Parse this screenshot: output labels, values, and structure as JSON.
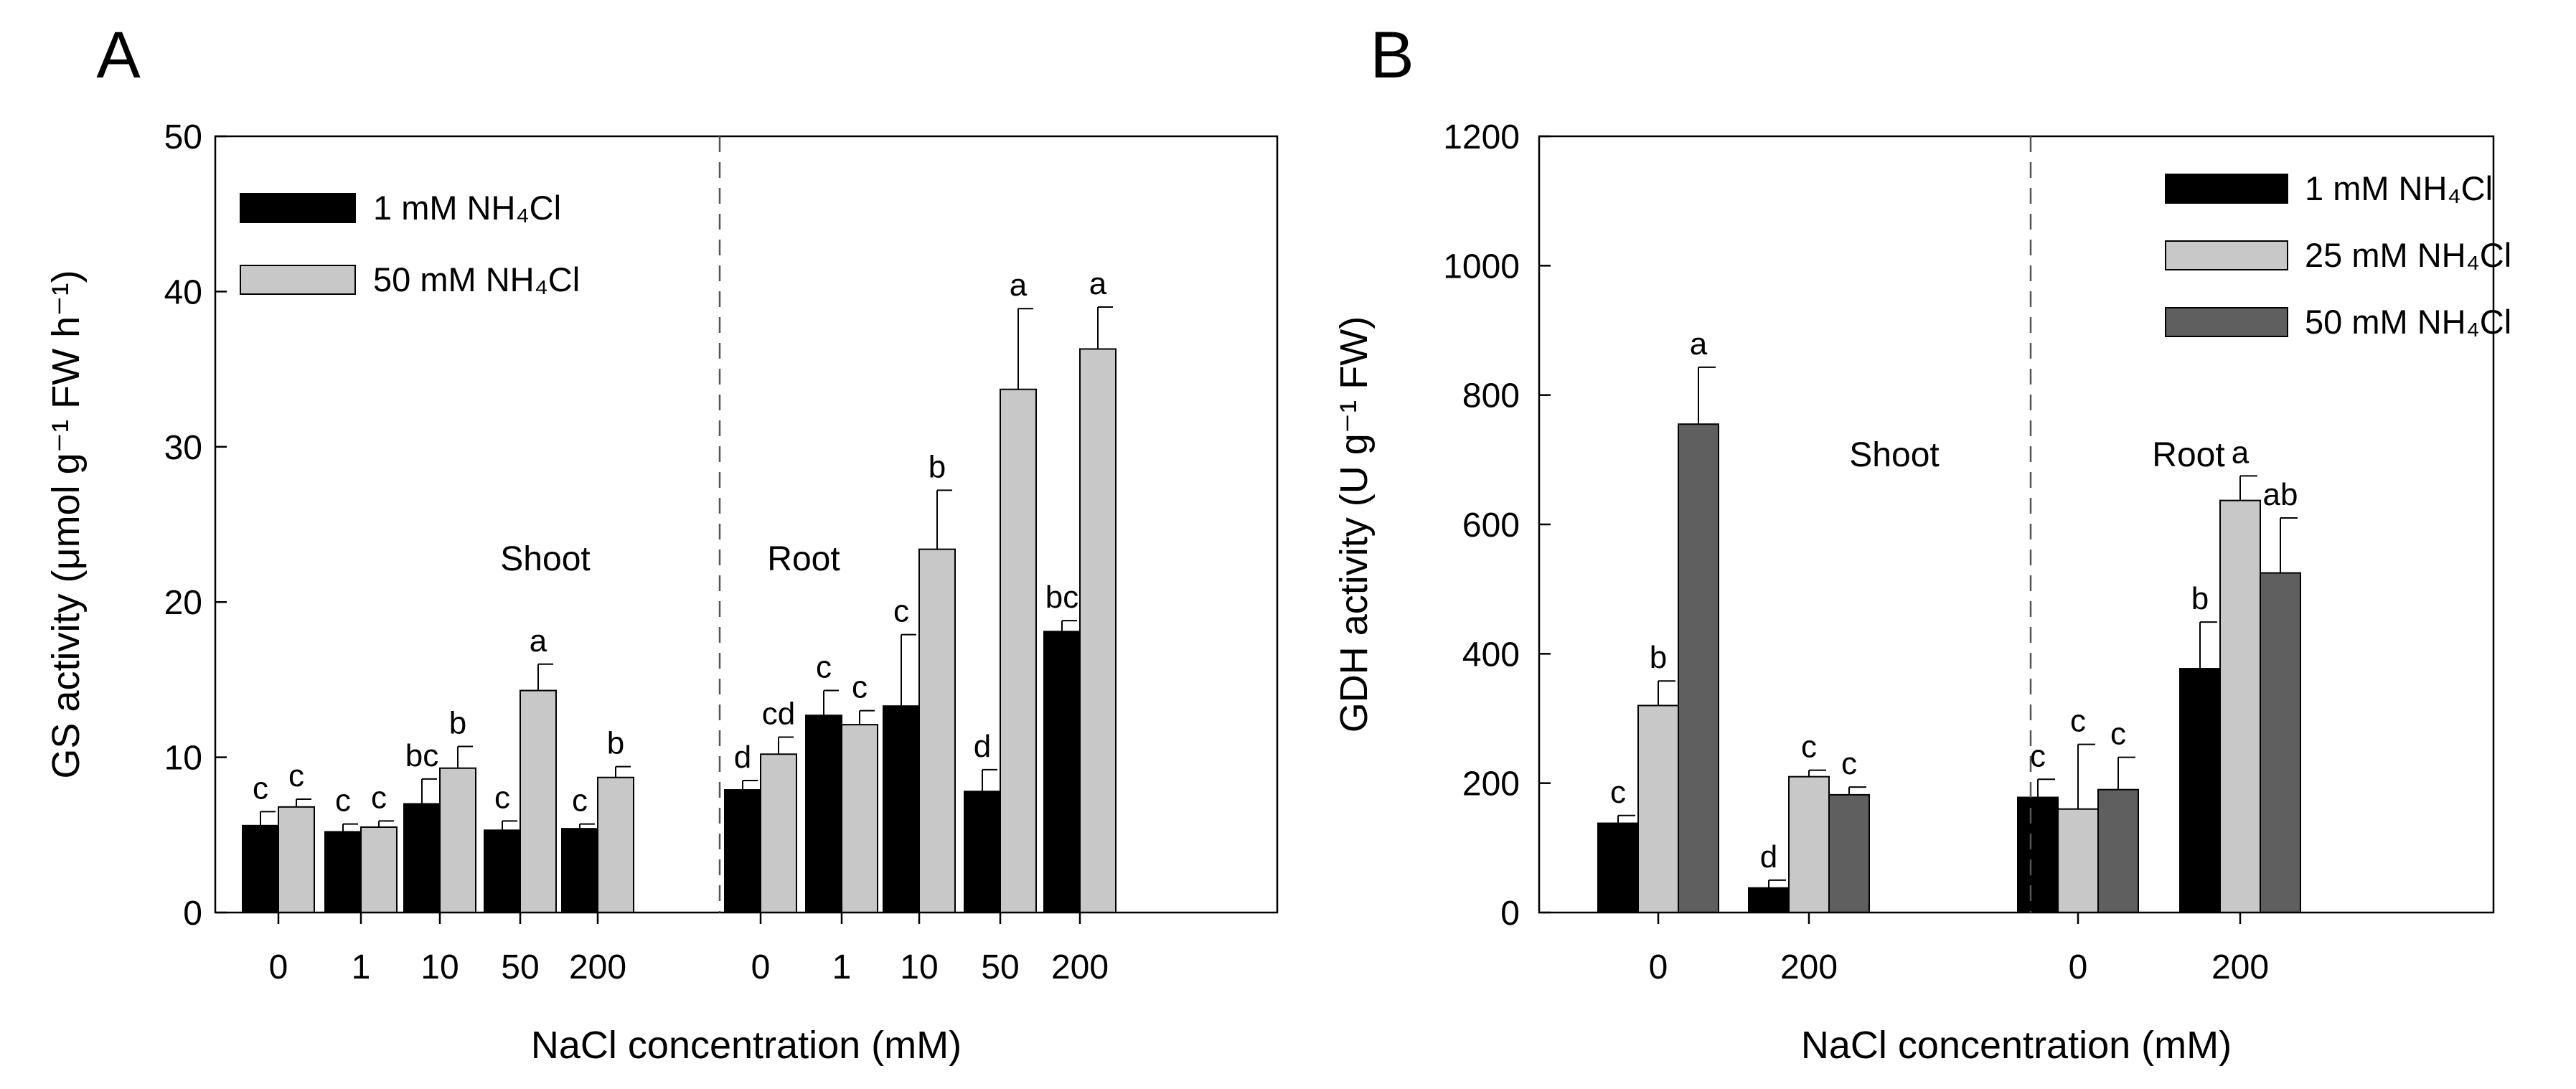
{
  "colors": {
    "black_series": "#000000",
    "light_gray_series": "#c8c8c8",
    "dark_gray_series": "#5f5f5f",
    "axis": "#000000",
    "divider": "#555555"
  },
  "chart_data": [
    {
      "type": "bar",
      "panel_label": "A",
      "ylabel": "GS activity (μmol g⁻¹ FW h⁻¹)",
      "xlabel": "NaCl concentration (mM)",
      "ylim": [
        0,
        50
      ],
      "yticks": [
        0,
        10,
        20,
        30,
        40,
        50
      ],
      "groups": [
        {
          "region": "Shoot",
          "categories": [
            "0",
            "1",
            "10",
            "50",
            "200"
          ]
        },
        {
          "region": "Root",
          "categories": [
            "0",
            "1",
            "10",
            "50",
            "200"
          ]
        }
      ],
      "categories": [
        "0",
        "1",
        "10",
        "50",
        "200",
        "0",
        "1",
        "10",
        "50",
        "200"
      ],
      "region_labels": [
        "Shoot",
        "Root"
      ],
      "legend": [
        "1 mM NH₄Cl",
        "50 mM NH₄Cl"
      ],
      "series": [
        {
          "name": "1 mM NH₄Cl",
          "color": "#000000",
          "values": [
            5.6,
            5.2,
            7.0,
            5.3,
            5.4,
            7.9,
            12.7,
            13.3,
            7.8,
            18.1
          ],
          "errors": [
            0.9,
            0.5,
            1.6,
            0.6,
            0.3,
            0.6,
            1.6,
            4.6,
            1.4,
            0.7
          ],
          "letters": [
            "c",
            "c",
            "bc",
            "c",
            "c",
            "d",
            "c",
            "c",
            "d",
            "bc"
          ]
        },
        {
          "name": "50 mM NH₄Cl",
          "color": "#c8c8c8",
          "values": [
            6.8,
            5.5,
            9.3,
            14.3,
            8.7,
            10.2,
            12.1,
            23.4,
            33.7,
            36.3
          ],
          "errors": [
            0.5,
            0.4,
            1.4,
            1.7,
            0.7,
            1.1,
            0.9,
            3.8,
            5.2,
            2.7
          ],
          "letters": [
            "c",
            "c",
            "b",
            "a",
            "b",
            "cd",
            "c",
            "b",
            "a",
            "a"
          ]
        }
      ]
    },
    {
      "type": "bar",
      "panel_label": "B",
      "ylabel": "GDH activity (U g⁻¹ FW)",
      "xlabel": "NaCl concentration (mM)",
      "ylim": [
        0,
        1200
      ],
      "yticks": [
        0,
        200,
        400,
        600,
        800,
        1000,
        1200
      ],
      "groups": [
        {
          "region": "Shoot",
          "categories": [
            "0",
            "200"
          ]
        },
        {
          "region": "Root",
          "categories": [
            "0",
            "200"
          ]
        }
      ],
      "categories": [
        "0",
        "200",
        "0",
        "200"
      ],
      "region_labels": [
        "Shoot",
        "Root"
      ],
      "legend": [
        "1 mM NH₄Cl",
        "25 mM NH₄Cl",
        "50 mM NH₄Cl"
      ],
      "series": [
        {
          "name": "1 mM NH₄Cl",
          "color": "#000000",
          "values": [
            138,
            38,
            178,
            377
          ],
          "errors": [
            12,
            12,
            28,
            72
          ],
          "letters": [
            "c",
            "d",
            "c",
            "b"
          ]
        },
        {
          "name": "25 mM NH₄Cl",
          "color": "#c8c8c8",
          "values": [
            320,
            210,
            160,
            637
          ],
          "errors": [
            38,
            10,
            100,
            38
          ],
          "letters": [
            "b",
            "c",
            "c",
            "a"
          ]
        },
        {
          "name": "50 mM NH₄Cl",
          "color": "#5f5f5f",
          "values": [
            755,
            182,
            190,
            525
          ],
          "errors": [
            88,
            12,
            50,
            85
          ],
          "letters": [
            "a",
            "c",
            "c",
            "ab"
          ]
        }
      ]
    }
  ]
}
